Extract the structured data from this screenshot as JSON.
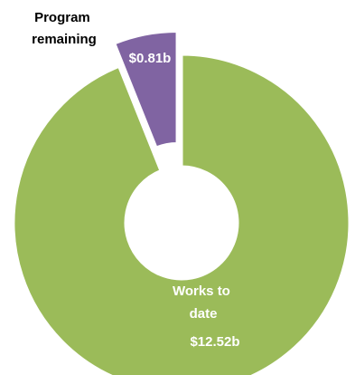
{
  "chart_data": {
    "type": "pie",
    "variant": "donut",
    "slices": [
      {
        "name_lines": [
          "Program",
          "remaining"
        ],
        "value": 0.81,
        "value_label": "$0.81b",
        "color": "#8064A2",
        "exploded": true,
        "name_color": "#000000",
        "value_color": "#ffffff"
      },
      {
        "name_lines": [
          "Works to",
          "date"
        ],
        "value": 12.52,
        "value_label": "$12.52b",
        "color": "#9BBB59",
        "exploded": false,
        "name_color": "#ffffff",
        "value_color": "#ffffff"
      }
    ]
  }
}
